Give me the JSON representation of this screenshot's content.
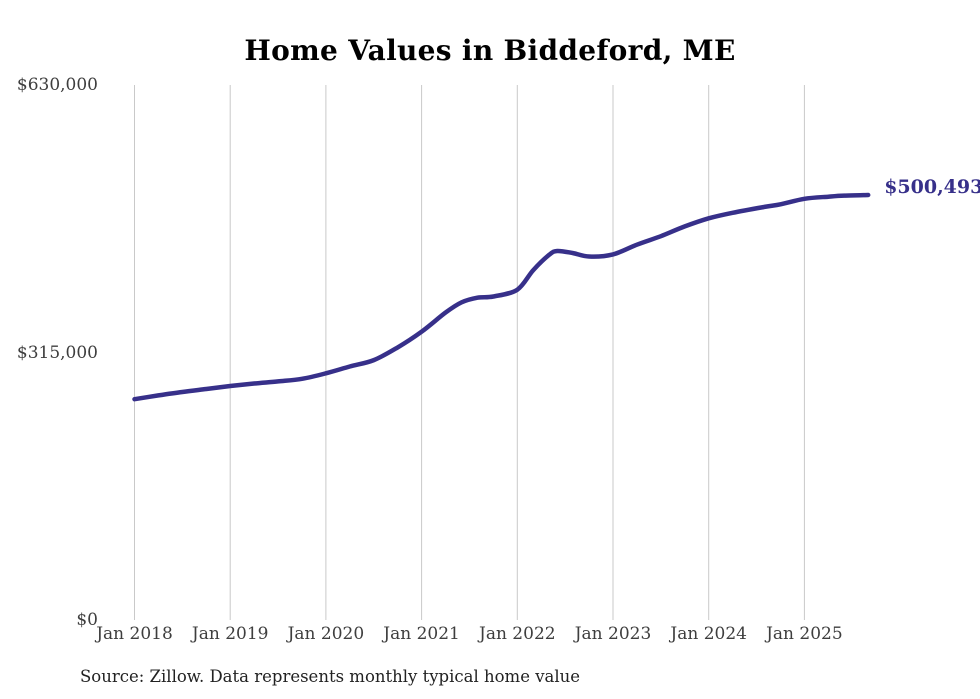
{
  "chart": {
    "title": "Home Values in Biddeford, ME",
    "source_note": "Source: Zillow. Data represents monthly typical home value",
    "latest_value_label": "$500,493"
  },
  "colors": {
    "accent_line": "#37308a",
    "gridline": "#c9c9c9",
    "tick_text": "#3e3e3e",
    "title_text": "#000000",
    "source_text": "#222222",
    "background": "#ffffff"
  },
  "chart_data": {
    "type": "line",
    "title": "Home Values in Biddeford, ME",
    "xlabel": "",
    "ylabel": "",
    "ylim": [
      0,
      630000
    ],
    "grid": "vertical-only",
    "legend": "none",
    "line_color": "#37308a",
    "x_tick_labels": [
      "Jan 2018",
      "Jan 2019",
      "Jan 2020",
      "Jan 2021",
      "Jan 2022",
      "Jan 2023",
      "Jan 2024",
      "Jan 2025"
    ],
    "y_ticks": [
      {
        "label": "$630,000",
        "value": 630000
      },
      {
        "label": "$315,000",
        "value": 315000
      },
      {
        "label": "$0",
        "value": 0
      }
    ],
    "latest_value": 500493,
    "latest_date": "2025-09",
    "series": [
      {
        "name": "Monthly typical home value",
        "points": [
          {
            "date": "2018-01",
            "value": 260000
          },
          {
            "date": "2018-04",
            "value": 264500
          },
          {
            "date": "2018-07",
            "value": 268500
          },
          {
            "date": "2018-10",
            "value": 272000
          },
          {
            "date": "2019-01",
            "value": 275500
          },
          {
            "date": "2019-04",
            "value": 278500
          },
          {
            "date": "2019-07",
            "value": 281000
          },
          {
            "date": "2019-10",
            "value": 284000
          },
          {
            "date": "2020-01",
            "value": 290500
          },
          {
            "date": "2020-04",
            "value": 298500
          },
          {
            "date": "2020-07",
            "value": 306000
          },
          {
            "date": "2020-10",
            "value": 321000
          },
          {
            "date": "2021-01",
            "value": 339500
          },
          {
            "date": "2021-04",
            "value": 362000
          },
          {
            "date": "2021-06",
            "value": 374000
          },
          {
            "date": "2021-08",
            "value": 379500
          },
          {
            "date": "2021-10",
            "value": 381000
          },
          {
            "date": "2022-01",
            "value": 389000
          },
          {
            "date": "2022-03",
            "value": 412000
          },
          {
            "date": "2022-05",
            "value": 430000
          },
          {
            "date": "2022-06",
            "value": 434500
          },
          {
            "date": "2022-08",
            "value": 432000
          },
          {
            "date": "2022-10",
            "value": 428000
          },
          {
            "date": "2023-01",
            "value": 430500
          },
          {
            "date": "2023-04",
            "value": 442000
          },
          {
            "date": "2023-07",
            "value": 452000
          },
          {
            "date": "2023-10",
            "value": 463500
          },
          {
            "date": "2024-01",
            "value": 473000
          },
          {
            "date": "2024-04",
            "value": 479500
          },
          {
            "date": "2024-08",
            "value": 486500
          },
          {
            "date": "2024-10",
            "value": 489500
          },
          {
            "date": "2025-01",
            "value": 496000
          },
          {
            "date": "2025-04",
            "value": 498500
          },
          {
            "date": "2025-06",
            "value": 499800
          },
          {
            "date": "2025-09",
            "value": 500493
          }
        ]
      }
    ]
  }
}
